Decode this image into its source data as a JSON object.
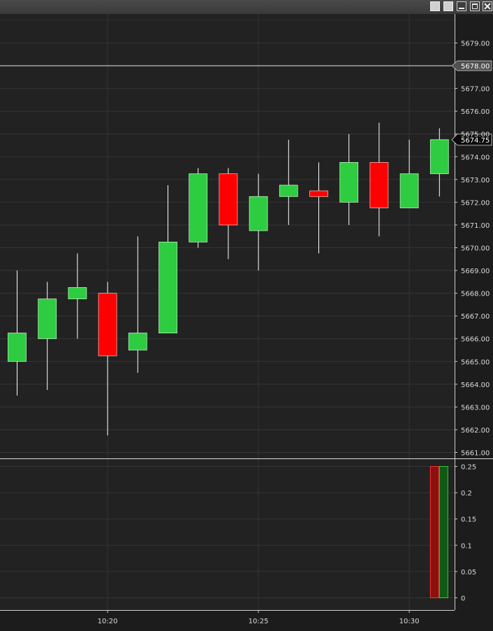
{
  "window": {
    "buttons": [
      "plain-1",
      "plain-2",
      "minimize",
      "maximize",
      "close"
    ]
  },
  "colors": {
    "up": "#2ecc40",
    "down": "#ff0000",
    "background": "#222222",
    "grid": "#353535",
    "wick": "#ffffff"
  },
  "chart_data": [
    {
      "type": "candlestick",
      "x": [
        "10:17",
        "10:18",
        "10:19",
        "10:20",
        "10:21",
        "10:22",
        "10:23",
        "10:24",
        "10:25",
        "10:26",
        "10:27",
        "10:28",
        "10:29",
        "10:30",
        "10:31"
      ],
      "open": [
        5665.0,
        5666.0,
        5667.75,
        5668.0,
        5665.5,
        5666.25,
        5670.25,
        5673.25,
        5670.75,
        5672.25,
        5672.5,
        5672.0,
        5673.75,
        5671.75,
        5673.25
      ],
      "high": [
        5669.0,
        5668.5,
        5669.75,
        5668.5,
        5670.5,
        5672.75,
        5673.5,
        5673.5,
        5673.25,
        5674.75,
        5673.75,
        5675.0,
        5675.5,
        5674.75,
        5675.25
      ],
      "low": [
        5663.5,
        5663.75,
        5666.0,
        5661.75,
        5664.5,
        5666.25,
        5670.0,
        5669.5,
        5669.0,
        5671.0,
        5669.75,
        5671.0,
        5670.5,
        5671.75,
        5672.25
      ],
      "close": [
        5666.25,
        5667.75,
        5668.25,
        5665.25,
        5666.25,
        5670.25,
        5673.25,
        5671.0,
        5672.25,
        5672.75,
        5672.25,
        5673.75,
        5671.75,
        5673.25,
        5674.75
      ],
      "ylim": [
        5661.0,
        5679.0
      ],
      "yticks": [
        "5661.00",
        "5662.00",
        "5663.00",
        "5664.00",
        "5665.00",
        "5666.00",
        "5667.00",
        "5668.00",
        "5669.00",
        "5670.00",
        "5671.00",
        "5672.00",
        "5673.00",
        "5674.00",
        "5675.00",
        "5676.00",
        "5677.00",
        "5678.00",
        "5679.00"
      ],
      "horizontal_line": {
        "value": 5678.0,
        "label": "5678.00"
      },
      "last_price": {
        "value": 5674.75,
        "label": "5674.75"
      },
      "grid": true
    },
    {
      "type": "bar",
      "series": [
        {
          "values": [
            0.25
          ],
          "color": "#8b1010"
        },
        {
          "values": [
            0.25
          ],
          "color": "#0e5a14"
        }
      ],
      "ylim": [
        0,
        0.25
      ],
      "yticks": [
        "0",
        "0.05",
        "0.1",
        "0.15",
        "0.2",
        "0.25"
      ],
      "grid": true
    }
  ],
  "xaxis": {
    "ticks": [
      {
        "t": "10:20",
        "label": "10:20"
      },
      {
        "t": "10:25",
        "label": "10:25"
      },
      {
        "t": "10:30",
        "label": "10:30"
      }
    ]
  }
}
